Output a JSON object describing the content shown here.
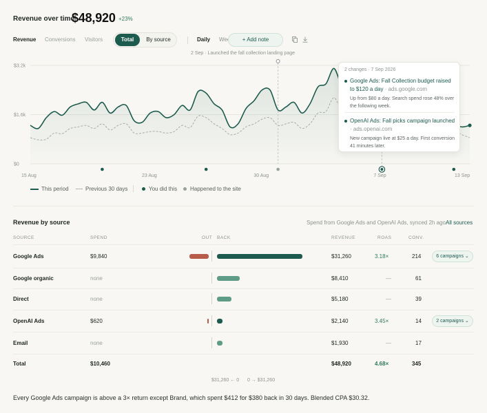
{
  "header": {
    "label": "Revenue over time",
    "value": "$48,920",
    "delta": "+23%"
  },
  "tabs": [
    {
      "label": "Revenue",
      "active": true
    },
    {
      "label": "Conversions",
      "active": false
    },
    {
      "label": "Visitors",
      "active": false
    }
  ],
  "segment": {
    "total": "Total",
    "by_source": "By source"
  },
  "granularity": [
    {
      "label": "Daily",
      "active": true
    },
    {
      "label": "Weekly",
      "active": false
    }
  ],
  "add_note": "+ Add note",
  "icons": {
    "copy": "copy-icon",
    "download": "download-icon"
  },
  "annotation_top": "2 Sep · Launched the fall collection landing page",
  "chart_data": {
    "type": "line",
    "yticks": [
      "$3.2k",
      "$1.6k",
      "$0"
    ],
    "ylim": [
      0,
      3200
    ],
    "xticks": [
      "15 Aug",
      "23 Aug",
      "30 Aug",
      "7 Sep",
      "13 Sep"
    ],
    "series": [
      {
        "name": "This period",
        "values": [
          1250,
          1150,
          1500,
          1700,
          1580,
          1850,
          1950,
          2000,
          1750,
          2000,
          1650,
          1850,
          1900,
          1400,
          1350,
          1650,
          1700,
          1500,
          1600,
          1900,
          1750,
          2350,
          2300,
          1950,
          1750,
          1200,
          1300,
          1800,
          2050,
          2400,
          2400,
          1750,
          1850,
          2000,
          1650,
          1950,
          2500,
          2600,
          3100,
          2500,
          2250,
          2000,
          1800,
          1850,
          1950,
          1850,
          1450,
          2100,
          2050,
          2000,
          1950,
          1850,
          1450,
          1300,
          1200,
          1250
        ]
      },
      {
        "name": "Previous 30 days",
        "values": [
          850,
          780,
          800,
          1000,
          980,
          1150,
          1200,
          1250,
          1150,
          1300,
          1100,
          1250,
          1300,
          1000,
          1000,
          1050,
          1050,
          1000,
          1050,
          1250,
          1180,
          1550,
          1500,
          1300,
          1150,
          950,
          1000,
          1200,
          1300,
          1450,
          1500,
          1250,
          1300,
          1350,
          1150,
          1300,
          1650,
          1700,
          2150,
          1700,
          1600,
          1500,
          1350,
          1350,
          1400,
          1350,
          1150,
          1400,
          1350,
          1350,
          1300,
          1250,
          1050,
          1100,
          950,
          850
        ]
      }
    ],
    "markers_you_did": [
      9,
      22,
      44,
      53
    ],
    "markers_site": [
      31
    ],
    "highlight_index": 44
  },
  "tooltip": {
    "head": "2 changes · 7 Sep 2026",
    "items": [
      {
        "title": "Google Ads: Fall Collection budget raised to $120 a day",
        "source": " · ads.google.com",
        "body": "Up from $80 a day. Search spend rose 48% over the following week."
      },
      {
        "title": "OpenAI Ads: Fall picks campaign launched",
        "source": " · ads.openai.com",
        "body": "New campaign live at $25 a day. First conversion 41 minutes later."
      }
    ]
  },
  "legend": {
    "this_period": "This period",
    "previous": "Previous 30 days",
    "you_did": "You did this",
    "site": "Happened to the site"
  },
  "table": {
    "title": "Revenue by source",
    "meta": "Spend from Google Ads and OpenAI Ads, synced 2h ago",
    "link": "All sources",
    "headers": {
      "source": "SOURCE",
      "spend": "SPEND",
      "out": "OUT",
      "back": "BACK",
      "revenue": "REVENUE",
      "roas": "ROAS",
      "conv": "CONV."
    },
    "rows": [
      {
        "source": "Google Ads",
        "spend": "$9,840",
        "spend_value": 9840,
        "revenue": "$31,260",
        "revenue_value": 31260,
        "roas": "3.18×",
        "conv": "214",
        "campaigns": "6 campaigns ⌄"
      },
      {
        "source": "Google organic",
        "spend": "none",
        "spend_value": 0,
        "revenue": "$8,410",
        "revenue_value": 8410,
        "roas": "—",
        "conv": "61",
        "campaigns": ""
      },
      {
        "source": "Direct",
        "spend": "none",
        "spend_value": 0,
        "revenue": "$5,180",
        "revenue_value": 5180,
        "roas": "—",
        "conv": "39",
        "campaigns": ""
      },
      {
        "source": "OpenAI Ads",
        "spend": "$620",
        "spend_value": 620,
        "revenue": "$2,140",
        "revenue_value": 2140,
        "roas": "3.45×",
        "conv": "14",
        "campaigns": "2 campaigns ⌄"
      },
      {
        "source": "Email",
        "spend": "none",
        "spend_value": 0,
        "revenue": "$1,930",
        "revenue_value": 1930,
        "roas": "—",
        "conv": "17",
        "campaigns": ""
      }
    ],
    "total": {
      "source": "Total",
      "spend": "$10,460",
      "revenue": "$48,920",
      "roas": "4.68×",
      "conv": "345"
    },
    "scale_left": "$31,260 ← 0",
    "scale_right": "0 → $31,260"
  },
  "footer": "Every Google Ads campaign is above a 3× return except Brand, which spent $412 for $380 back in 30 days. Blended CPA $30.32.",
  "colors": {
    "accent": "#1c5b4d",
    "out": "#b85c4a",
    "back_light": "#5f9c88"
  }
}
